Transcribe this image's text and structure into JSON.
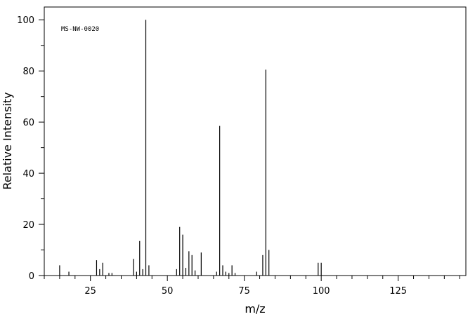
{
  "chart_data": {
    "type": "spectrum",
    "annotation": "MS-NW-0020",
    "xlabel": "m/z",
    "ylabel": "Relative Intensity",
    "x": [
      15,
      18,
      27,
      28,
      29,
      31,
      32,
      39,
      40,
      41,
      42,
      43,
      44,
      53,
      54,
      55,
      56,
      57,
      58,
      59,
      61,
      66,
      67,
      68,
      69,
      70,
      71,
      72,
      79,
      81,
      82,
      83,
      99,
      100
    ],
    "values": [
      4,
      1.5,
      6,
      2.5,
      5,
      1,
      1,
      6.5,
      1.5,
      13.5,
      2.5,
      100,
      4,
      2.5,
      19,
      16,
      3,
      9.5,
      8,
      2,
      9,
      1.5,
      58.5,
      4,
      1.5,
      1,
      4,
      1,
      1.5,
      8,
      80.5,
      10,
      5,
      5
    ],
    "color": "#000000",
    "xlim": [
      10,
      147
    ],
    "ylim": [
      0,
      105
    ],
    "xticks": [
      25,
      50,
      75,
      100,
      125
    ],
    "yticks": [
      0,
      20,
      40,
      60,
      80,
      100
    ],
    "xminorticks": [
      10,
      15,
      20,
      30,
      35,
      40,
      45,
      55,
      60,
      65,
      70,
      80,
      85,
      90,
      95,
      105,
      110,
      115,
      120,
      130,
      135,
      140,
      145
    ],
    "yminorticks": [
      10,
      30,
      50,
      70,
      90
    ]
  }
}
